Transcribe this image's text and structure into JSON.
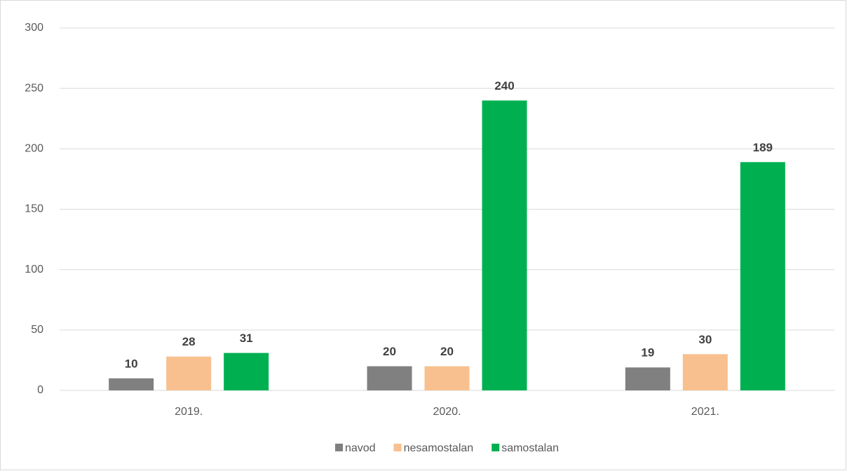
{
  "chart_data": {
    "type": "bar",
    "categories": [
      "2019.",
      "2020.",
      "2021."
    ],
    "series": [
      {
        "name": "navod",
        "color": "#808080",
        "values": [
          10,
          20,
          19
        ]
      },
      {
        "name": "nesamostalan",
        "color": "#f8c08f",
        "values": [
          28,
          20,
          30
        ]
      },
      {
        "name": "samostalan",
        "color": "#00b050",
        "values": [
          31,
          240,
          189
        ]
      }
    ],
    "ylim": [
      0,
      300
    ],
    "yticks": [
      0,
      50,
      100,
      150,
      200,
      250,
      300
    ],
    "grid": true,
    "legend": "bottom"
  }
}
